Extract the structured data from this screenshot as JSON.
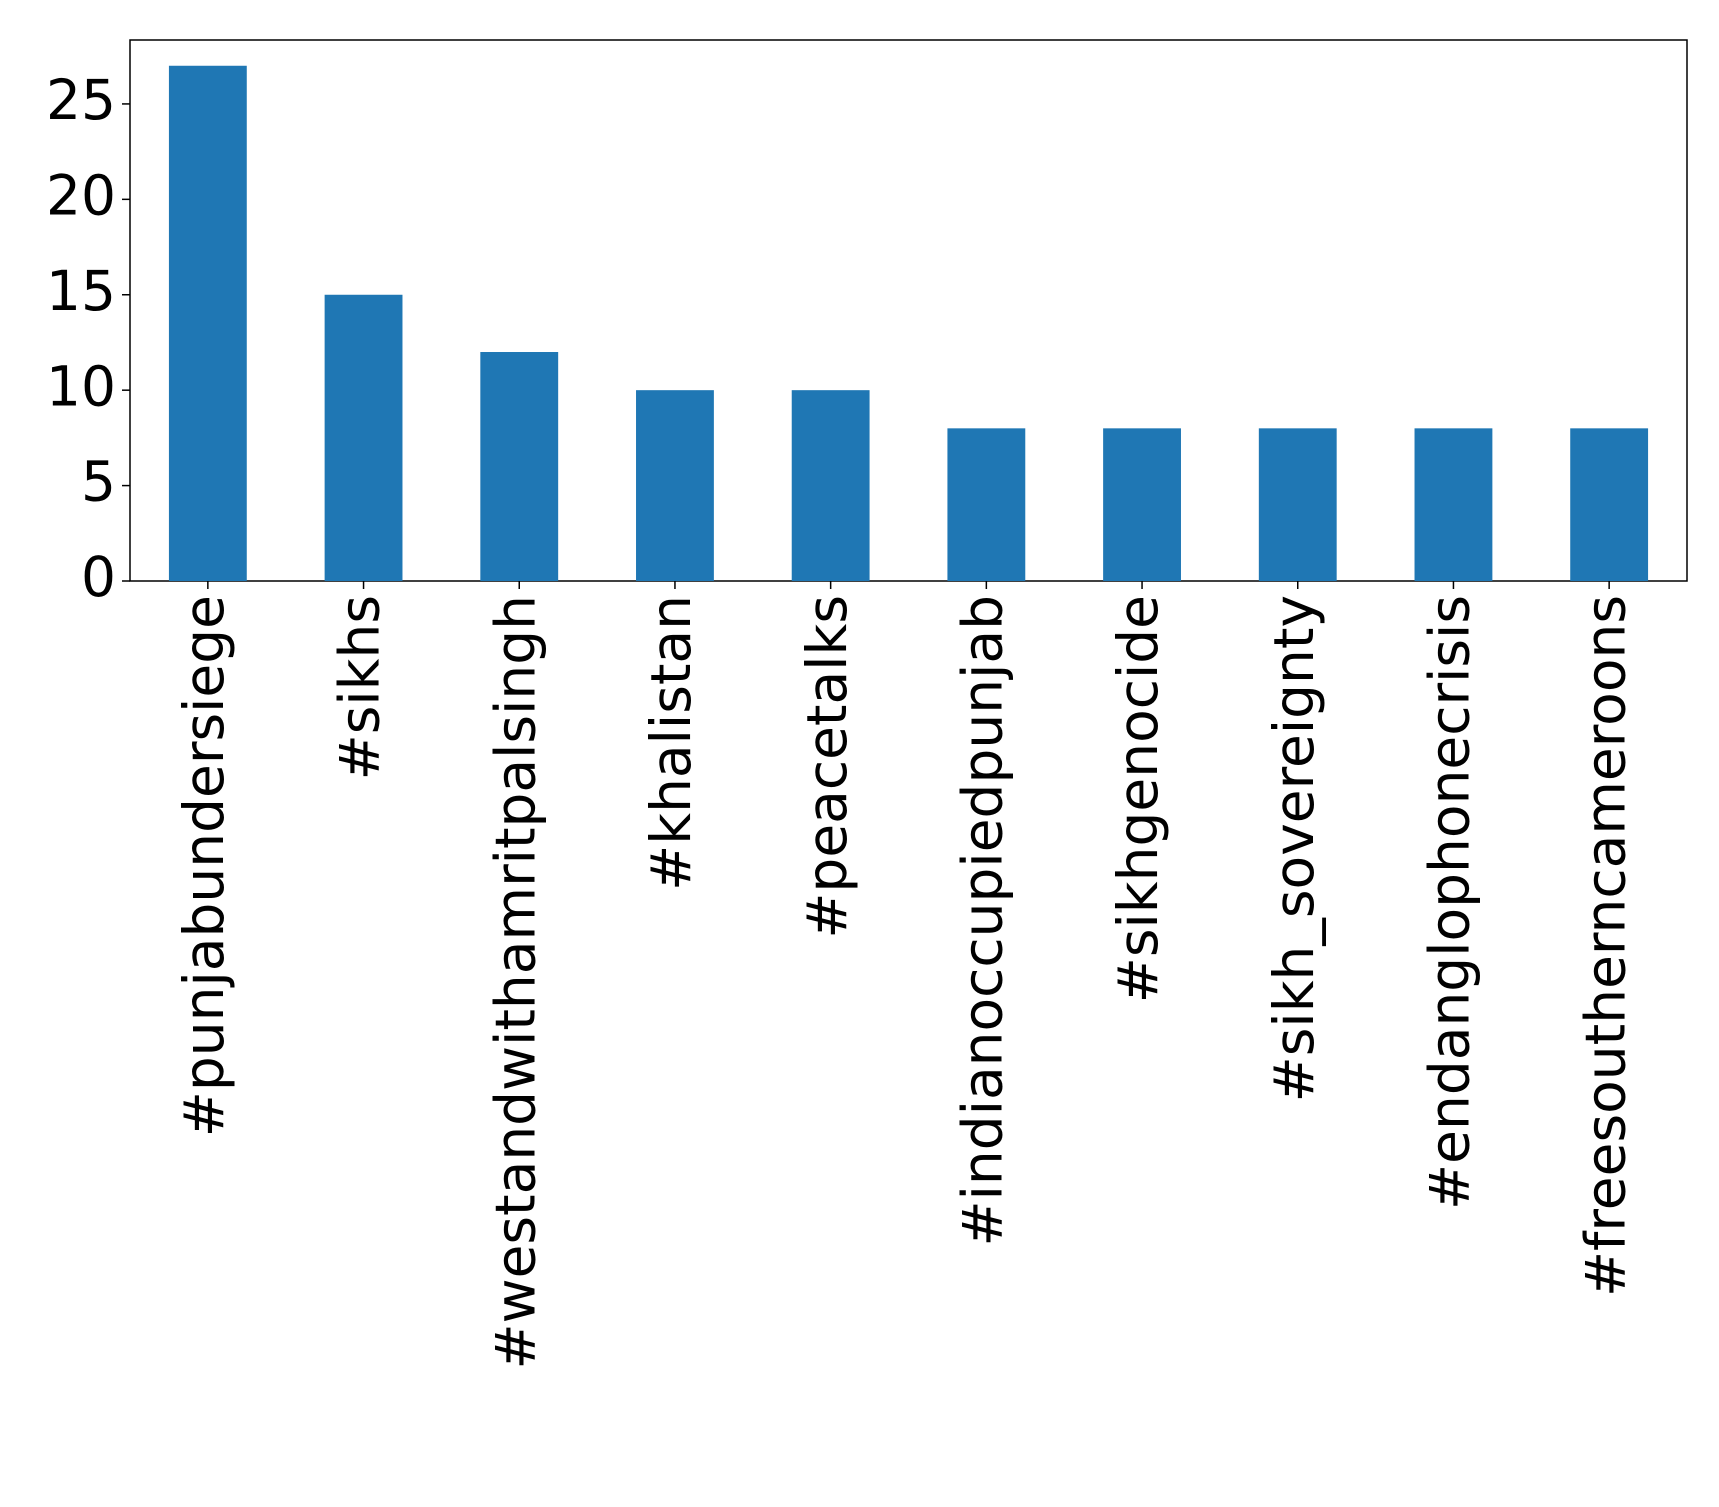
{
  "chart_data": {
    "type": "bar",
    "categories": [
      "#punjabundersiege",
      "#sikhs",
      "#westandwithamritpalsingh",
      "#khalistan",
      "#peacetalks",
      "#indianoccupiedpunjab",
      "#sikhgenocide",
      "#sikh_sovereignty",
      "#endanglophonecrisis",
      "#freesoutherncameroons"
    ],
    "values": [
      27,
      15,
      12,
      10,
      10,
      8,
      8,
      8,
      8,
      8
    ],
    "color": "#1f77b4",
    "ylim": [
      0,
      28.35
    ],
    "yticks": [
      0,
      5,
      10,
      15,
      20,
      25
    ],
    "grid": false
  }
}
